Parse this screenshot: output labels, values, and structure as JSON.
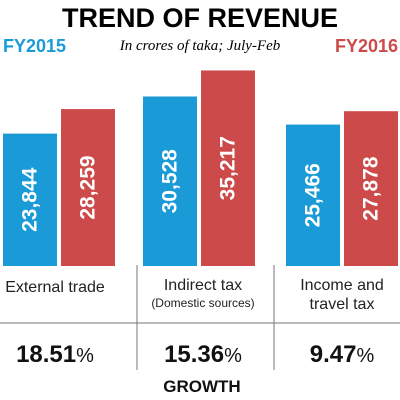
{
  "chart_data": {
    "type": "bar",
    "title": "TREND OF REVENUE",
    "subtitle": "In crores of taka; July-Feb",
    "ylim": [
      0,
      38000
    ],
    "grid": false,
    "categories": [
      {
        "label": "External trade",
        "sublabel": ""
      },
      {
        "label": "Indirect tax",
        "sublabel": "(Domestic sources)"
      },
      {
        "label": "Income and",
        "sublabel": "travel tax"
      }
    ],
    "series": [
      {
        "name": "FY2015",
        "color": "#1a9ad6",
        "values": [
          23844,
          30528,
          25466
        ],
        "labels": [
          "23,844",
          "30,528",
          "25,466"
        ]
      },
      {
        "name": "FY2016",
        "color": "#cc4a4a",
        "values": [
          28259,
          35217,
          27878
        ],
        "labels": [
          "28,259",
          "35,217",
          "27,878"
        ]
      }
    ],
    "growth": {
      "label": "GROWTH",
      "values": [
        "18.51",
        "15.36",
        "9.47"
      ],
      "unit": "%"
    }
  }
}
